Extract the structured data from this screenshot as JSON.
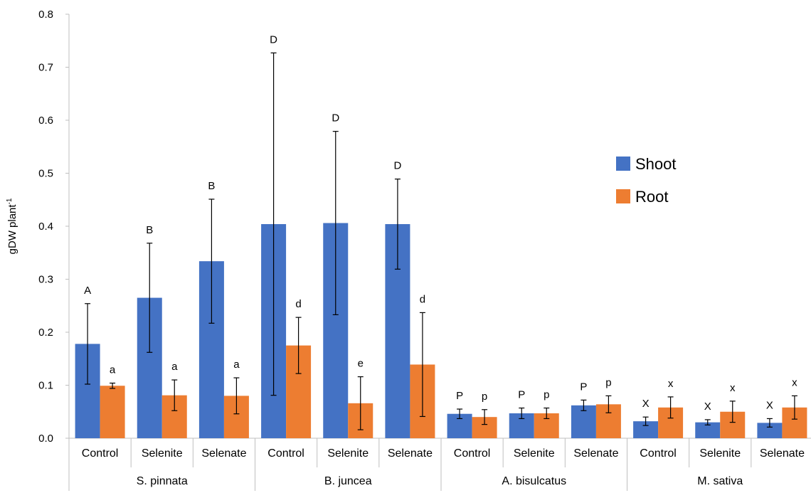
{
  "chart_data": {
    "type": "bar",
    "title": "",
    "ylabel": "gDW plant",
    "ylabel_superscript": "-1",
    "ylim": [
      0,
      0.8
    ],
    "yticks": [
      "0.0",
      "0.1",
      "0.2",
      "0.3",
      "0.4",
      "0.5",
      "0.6",
      "0.7",
      "0.8"
    ],
    "grid": false,
    "legend_position": "right",
    "groups": [
      {
        "name": "S. pinnata",
        "categories": [
          "Control",
          "Selenite",
          "Selenate"
        ]
      },
      {
        "name": "B. juncea",
        "categories": [
          "Control",
          "Selenite",
          "Selenate"
        ]
      },
      {
        "name": "A. bisulcatus",
        "categories": [
          "Control",
          "Selenite",
          "Selenate"
        ]
      },
      {
        "name": "M. sativa",
        "categories": [
          "Control",
          "Selenite",
          "Selenate"
        ]
      }
    ],
    "series": [
      {
        "name": "Shoot",
        "color": "#4472C4",
        "values": [
          0.178,
          0.265,
          0.334,
          0.404,
          0.406,
          0.404,
          0.046,
          0.047,
          0.062,
          0.032,
          0.03,
          0.029
        ],
        "errors": [
          0.076,
          0.103,
          0.117,
          0.323,
          0.173,
          0.085,
          0.009,
          0.01,
          0.01,
          0.008,
          0.005,
          0.008
        ],
        "significance": [
          "A",
          "B",
          "B",
          "D",
          "D",
          "D",
          "P",
          "P",
          "P",
          "X",
          "X",
          "X"
        ]
      },
      {
        "name": "Root",
        "color": "#ED7D31",
        "values": [
          0.099,
          0.081,
          0.08,
          0.175,
          0.066,
          0.139,
          0.04,
          0.047,
          0.064,
          0.058,
          0.05,
          0.058
        ],
        "errors": [
          0.005,
          0.029,
          0.034,
          0.053,
          0.05,
          0.098,
          0.014,
          0.01,
          0.016,
          0.02,
          0.02,
          0.022
        ],
        "significance": [
          "a",
          "a",
          "a",
          "d",
          "e",
          "d",
          "p",
          "p",
          "p",
          "x",
          "x",
          "x"
        ]
      }
    ]
  }
}
